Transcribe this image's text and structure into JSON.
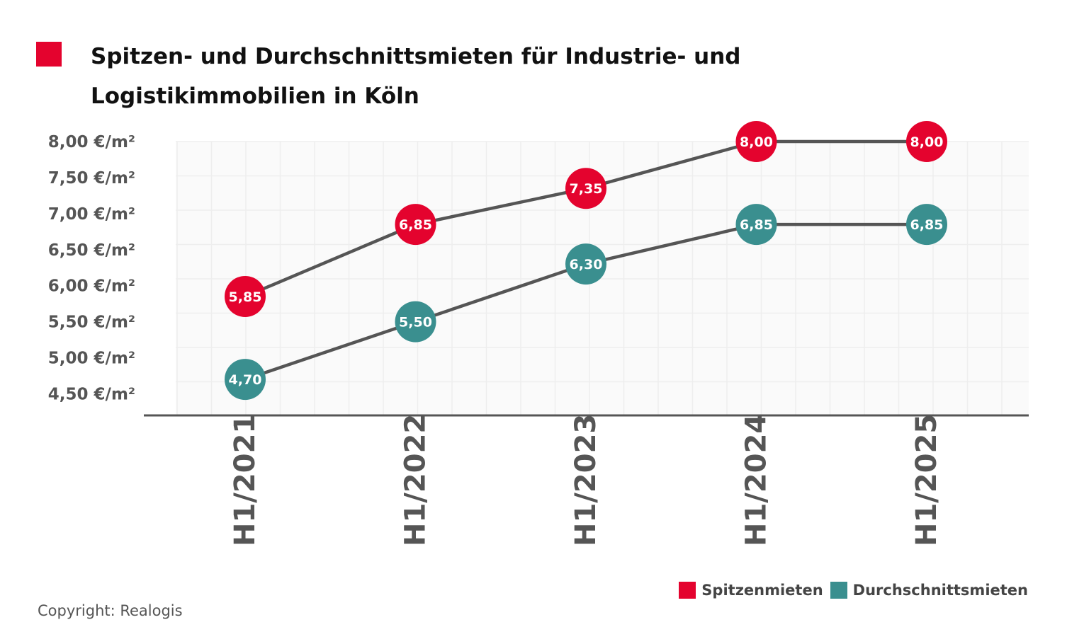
{
  "title": "Spitzen- und Durchschnittsmieten für Industrie- und Logistikimmobilien in Köln",
  "copyright": "Copyright: Realogis",
  "colors": {
    "title_marker": "#e4032e",
    "spitzen": "#e4032e",
    "durchschnitt": "#3a8f8f",
    "line": "#555555",
    "grid": "#eeeeee",
    "plot_bg": "#fafafa"
  },
  "chart_data": {
    "type": "line",
    "title": "Spitzen- und Durchschnittsmieten für Industrie- und Logistikimmobilien in Köln",
    "categories": [
      "H1/2021",
      "H1/2022",
      "H1/2023",
      "H1/2024",
      "H1/2025"
    ],
    "series": [
      {
        "name": "Spitzenmieten",
        "values": [
          5.85,
          6.85,
          7.35,
          8.0,
          8.0
        ],
        "labels": [
          "5,85",
          "6,85",
          "7,35",
          "8,00",
          "8,00"
        ]
      },
      {
        "name": "Durchschnittsmieten",
        "values": [
          4.7,
          5.5,
          6.3,
          6.85,
          6.85
        ],
        "labels": [
          "4,70",
          "5,50",
          "6,30",
          "6,85",
          "6,85"
        ]
      }
    ],
    "y_ticks": [
      4.5,
      5.0,
      5.5,
      6.0,
      6.5,
      7.0,
      7.5,
      8.0
    ],
    "y_tick_labels": [
      "4,50 €/m²",
      "5,00 €/m²",
      "5,50 €/m²",
      "6,00 €/m²",
      "6,50 €/m²",
      "7,00 €/m²",
      "7,50 €/m²",
      "8,00 €/m²"
    ],
    "ylim": [
      4.2,
      8.0
    ],
    "xlabel": "",
    "ylabel": "",
    "grid": true,
    "legend_position": "bottom-right"
  }
}
